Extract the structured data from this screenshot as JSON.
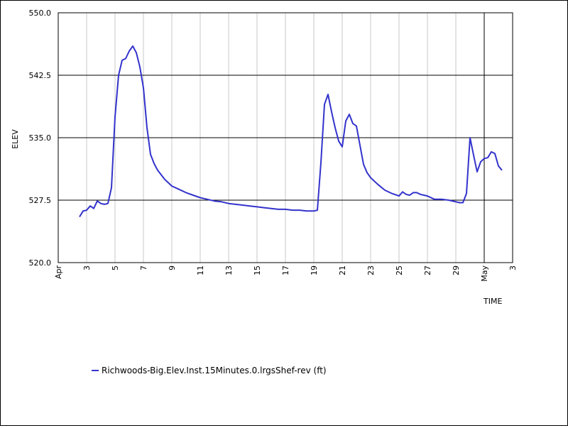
{
  "chart_data": {
    "type": "line",
    "ylabel": "ELEV",
    "xlabel": "TIME",
    "ylim": [
      520.0,
      550.0
    ],
    "y_ticks": [
      "550.0",
      "542.5",
      "535.0",
      "527.5",
      "520.0"
    ],
    "x_range": [
      "2024-04-01",
      "2024-05-03"
    ],
    "x_ticks": [
      {
        "date": "2024-04-01",
        "label": "Apr"
      },
      {
        "date": "2024-04-03",
        "label": "3"
      },
      {
        "date": "2024-04-05",
        "label": "5"
      },
      {
        "date": "2024-04-07",
        "label": "7"
      },
      {
        "date": "2024-04-09",
        "label": "9"
      },
      {
        "date": "2024-04-11",
        "label": "11"
      },
      {
        "date": "2024-04-13",
        "label": "13"
      },
      {
        "date": "2024-04-15",
        "label": "15"
      },
      {
        "date": "2024-04-17",
        "label": "17"
      },
      {
        "date": "2024-04-19",
        "label": "19"
      },
      {
        "date": "2024-04-21",
        "label": "21"
      },
      {
        "date": "2024-04-23",
        "label": "23"
      },
      {
        "date": "2024-04-25",
        "label": "25"
      },
      {
        "date": "2024-04-27",
        "label": "27"
      },
      {
        "date": "2024-04-29",
        "label": "29"
      },
      {
        "date": "2024-05-01",
        "label": "May"
      },
      {
        "date": "2024-05-03",
        "label": "3"
      }
    ],
    "grid": true,
    "legend_position": "bottom-left",
    "series": [
      {
        "name": "Richwoods-Big.Elev.Inst.15Minutes.0.lrgsShef-rev (ft)",
        "color": "#3333cc",
        "x": [
          "2024-04-02 12:00",
          "2024-04-02 18:00",
          "2024-04-03 00:00",
          "2024-04-03 06:00",
          "2024-04-03 12:00",
          "2024-04-03 18:00",
          "2024-04-04 00:00",
          "2024-04-04 06:00",
          "2024-04-04 12:00",
          "2024-04-04 18:00",
          "2024-04-05 00:00",
          "2024-04-05 06:00",
          "2024-04-05 12:00",
          "2024-04-05 18:00",
          "2024-04-06 00:00",
          "2024-04-06 06:00",
          "2024-04-06 12:00",
          "2024-04-06 18:00",
          "2024-04-07 00:00",
          "2024-04-07 06:00",
          "2024-04-07 12:00",
          "2024-04-07 18:00",
          "2024-04-08 00:00",
          "2024-04-08 12:00",
          "2024-04-09 00:00",
          "2024-04-09 12:00",
          "2024-04-10 00:00",
          "2024-04-10 12:00",
          "2024-04-11 00:00",
          "2024-04-11 12:00",
          "2024-04-12 00:00",
          "2024-04-12 12:00",
          "2024-04-13 00:00",
          "2024-04-13 12:00",
          "2024-04-14 00:00",
          "2024-04-14 12:00",
          "2024-04-15 00:00",
          "2024-04-15 12:00",
          "2024-04-16 00:00",
          "2024-04-16 12:00",
          "2024-04-17 00:00",
          "2024-04-17 12:00",
          "2024-04-18 00:00",
          "2024-04-18 12:00",
          "2024-04-19 00:00",
          "2024-04-19 06:00",
          "2024-04-19 12:00",
          "2024-04-19 18:00",
          "2024-04-20 00:00",
          "2024-04-20 06:00",
          "2024-04-20 12:00",
          "2024-04-20 18:00",
          "2024-04-21 00:00",
          "2024-04-21 06:00",
          "2024-04-21 12:00",
          "2024-04-21 18:00",
          "2024-04-22 00:00",
          "2024-04-22 06:00",
          "2024-04-22 12:00",
          "2024-04-22 18:00",
          "2024-04-23 00:00",
          "2024-04-23 12:00",
          "2024-04-24 00:00",
          "2024-04-24 12:00",
          "2024-04-25 00:00",
          "2024-04-25 06:00",
          "2024-04-25 12:00",
          "2024-04-25 18:00",
          "2024-04-26 00:00",
          "2024-04-26 06:00",
          "2024-04-26 12:00",
          "2024-04-26 18:00",
          "2024-04-27 00:00",
          "2024-04-27 12:00",
          "2024-04-28 00:00",
          "2024-04-28 12:00",
          "2024-04-29 00:00",
          "2024-04-29 06:00",
          "2024-04-29 12:00",
          "2024-04-29 18:00",
          "2024-04-30 00:00",
          "2024-04-30 06:00",
          "2024-04-30 12:00",
          "2024-04-30 18:00",
          "2024-05-01 00:00",
          "2024-05-01 06:00",
          "2024-05-01 12:00",
          "2024-05-01 18:00",
          "2024-05-02 00:00",
          "2024-05-02 06:00"
        ],
        "y": [
          525.5,
          526.2,
          526.3,
          526.8,
          526.5,
          527.4,
          527.1,
          527.0,
          527.1,
          529.0,
          537.5,
          542.5,
          544.3,
          544.5,
          545.4,
          546.0,
          545.2,
          543.5,
          541.0,
          536.2,
          533.0,
          531.9,
          531.1,
          530.0,
          529.2,
          528.8,
          528.4,
          528.1,
          527.8,
          527.6,
          527.4,
          527.3,
          527.1,
          527.0,
          526.9,
          526.8,
          526.7,
          526.6,
          526.5,
          526.4,
          526.4,
          526.3,
          526.3,
          526.2,
          526.2,
          526.3,
          532.0,
          539.0,
          540.2,
          538.1,
          536.2,
          534.6,
          533.9,
          537.0,
          537.8,
          536.7,
          536.4,
          534.1,
          531.8,
          530.8,
          530.2,
          529.4,
          528.7,
          528.3,
          528.0,
          528.5,
          528.2,
          528.1,
          528.4,
          528.4,
          528.2,
          528.1,
          528.0,
          527.6,
          527.6,
          527.5,
          527.3,
          527.2,
          527.2,
          528.3,
          535.0,
          532.9,
          530.9,
          532.1,
          532.5,
          532.6,
          533.3,
          533.1,
          531.6,
          531.1
        ]
      }
    ]
  }
}
